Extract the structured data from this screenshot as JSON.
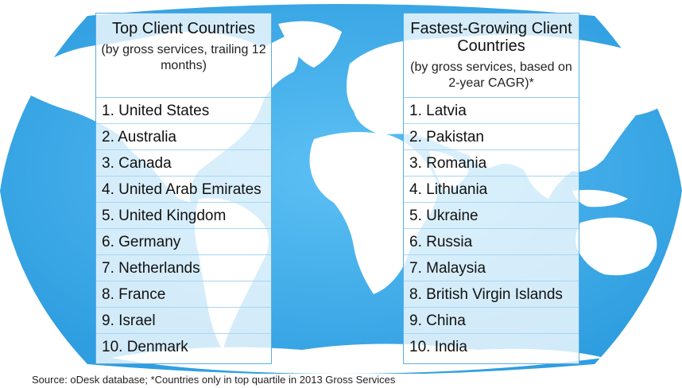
{
  "left_panel": {
    "title": "Top Client Countries",
    "subtitle": "(by gross services, trailing 12 months)",
    "items": [
      "1. United States",
      "2. Australia",
      "3. Canada",
      "4. United Arab Emirates",
      "5. United Kingdom",
      "6. Germany",
      "7. Netherlands",
      "8. France",
      "9. Israel",
      "10. Denmark"
    ]
  },
  "right_panel": {
    "title": "Fastest-Growing Client Countries",
    "subtitle": "(by gross services, based on 2-year CAGR)*",
    "items": [
      "1. Latvia",
      "2. Pakistan",
      "3. Romania",
      "4. Lithuania",
      "5. Ukraine",
      "6. Russia",
      "7. Malaysia",
      "8. British Virgin Islands",
      "9. China",
      "10. India"
    ]
  },
  "footer": {
    "source": "Source: oDesk database; *Countries only in top quartile in 2013 Gross Services"
  },
  "colors": {
    "ocean": "#49b0ec",
    "land": "#ffffff",
    "panel_border": "#5aaee8"
  }
}
